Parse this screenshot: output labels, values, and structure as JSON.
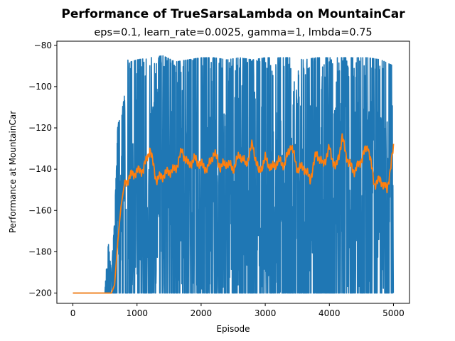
{
  "chart_data": {
    "type": "line",
    "title": "Performance of TrueSarsaLambda on MountainCar",
    "subtitle": "eps=0.1, learn_rate=0.0025, gamma=1, lmbda=0.75",
    "xlabel": "Episode",
    "ylabel": "Performance at MountainCar",
    "xlim": [
      -250,
      5250
    ],
    "ylim": [
      -205,
      -78
    ],
    "xticks": [
      0,
      1000,
      2000,
      3000,
      4000,
      5000
    ],
    "yticks": [
      -200,
      -180,
      -160,
      -140,
      -120,
      -100,
      -80
    ],
    "grid": false,
    "legend": "none",
    "series": [
      {
        "color": "#1f77b4",
        "description_values": "raw per-episode performance",
        "x": [
          0,
          500,
          550,
          600,
          650,
          700,
          750,
          800,
          850,
          900,
          1000,
          1200,
          1400,
          1600,
          1800,
          2000,
          2200,
          2400,
          2600,
          2800,
          3000,
          3200,
          3400,
          3600,
          3800,
          4000,
          4200,
          4400,
          4600,
          4800,
          5000
        ],
        "min": [
          -200,
          -200,
          -200,
          -200,
          -200,
          -200,
          -200,
          -200,
          -200,
          -200,
          -200,
          -200,
          -200,
          -200,
          -200,
          -200,
          -200,
          -200,
          -200,
          -200,
          -200,
          -200,
          -200,
          -200,
          -200,
          -200,
          -200,
          -200,
          -200,
          -200,
          -200
        ],
        "max": [
          -200,
          -199,
          -175,
          -190,
          -165,
          -118,
          -115,
          -105,
          -86,
          -88,
          -87,
          -86,
          -85,
          -88,
          -87,
          -86,
          -86,
          -87,
          -86,
          -87,
          -86,
          -86,
          -86,
          -87,
          -86,
          -86,
          -86,
          -86,
          -86,
          -87,
          -90
        ]
      },
      {
        "color": "#ff7f0e",
        "description_values": "moving average",
        "x": [
          0,
          500,
          600,
          650,
          700,
          750,
          800,
          850,
          900,
          1000,
          1100,
          1200,
          1300,
          1400,
          1500,
          1600,
          1700,
          1800,
          1900,
          2000,
          2100,
          2200,
          2300,
          2400,
          2500,
          2600,
          2700,
          2800,
          2900,
          3000,
          3100,
          3200,
          3300,
          3400,
          3500,
          3600,
          3700,
          3800,
          3900,
          4000,
          4100,
          4200,
          4300,
          4400,
          4500,
          4600,
          4700,
          4800,
          4900,
          5000
        ],
        "values": [
          -200,
          -200,
          -200,
          -196,
          -175,
          -158,
          -148,
          -145,
          -143,
          -141,
          -140,
          -130,
          -145,
          -143,
          -141,
          -140,
          -131,
          -138,
          -135,
          -138,
          -140,
          -132,
          -139,
          -137,
          -140,
          -133,
          -138,
          -128,
          -142,
          -135,
          -140,
          -136,
          -138,
          -128,
          -140,
          -139,
          -145,
          -132,
          -138,
          -130,
          -140,
          -125,
          -137,
          -141,
          -135,
          -128,
          -147,
          -145,
          -150,
          -130
        ]
      }
    ]
  }
}
